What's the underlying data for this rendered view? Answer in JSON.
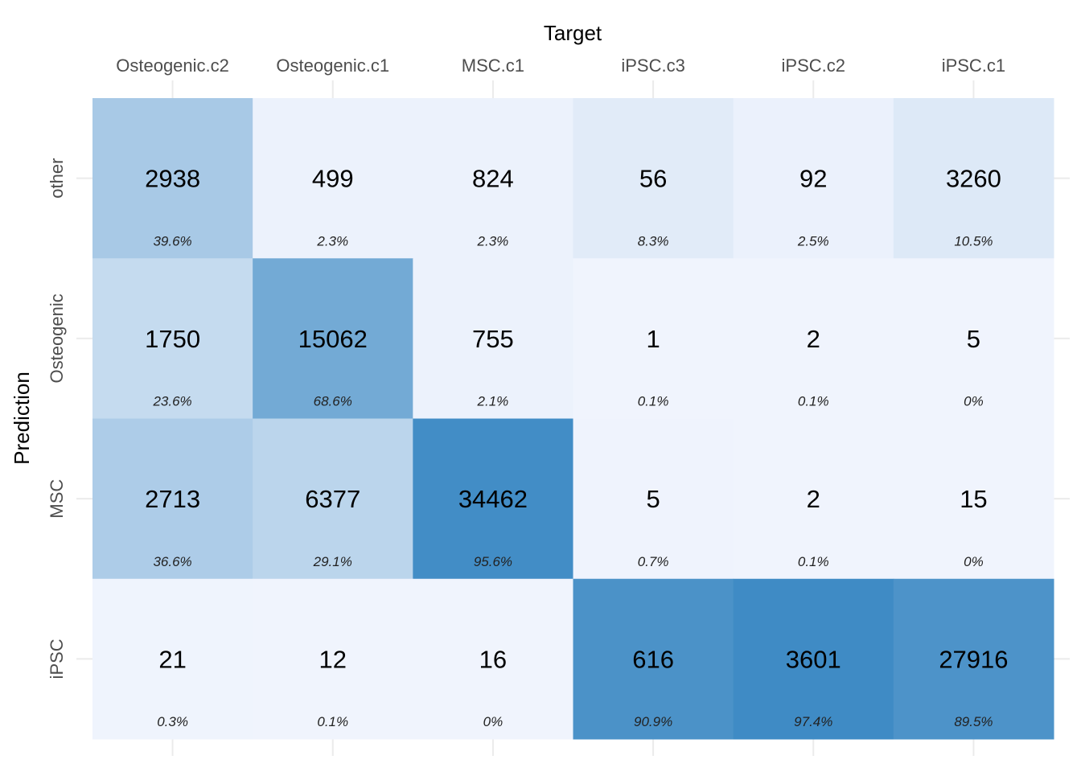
{
  "chart_data": {
    "type": "heatmap",
    "xlabel": "Target",
    "ylabel": "Prediction",
    "x_position": "top",
    "x_categories": [
      "Osteogenic.c2",
      "Osteogenic.c1",
      "MSC.c1",
      "iPSC.c3",
      "iPSC.c2",
      "iPSC.c1"
    ],
    "y_categories": [
      "other",
      "Osteogenic",
      "MSC",
      "iPSC"
    ],
    "values": [
      [
        2938,
        499,
        824,
        56,
        92,
        3260
      ],
      [
        1750,
        15062,
        755,
        1,
        2,
        5
      ],
      [
        2713,
        6377,
        34462,
        5,
        2,
        15
      ],
      [
        21,
        12,
        16,
        616,
        3601,
        27916
      ]
    ],
    "percent_labels": [
      [
        "39.6%",
        "2.3%",
        "2.3%",
        "8.3%",
        "2.5%",
        "10.5%"
      ],
      [
        "23.6%",
        "68.6%",
        "2.1%",
        "0.1%",
        "0.1%",
        "0%"
      ],
      [
        "36.6%",
        "29.1%",
        "95.6%",
        "0.7%",
        "0.1%",
        "0%"
      ],
      [
        "0.3%",
        "0.1%",
        "0%",
        "90.9%",
        "97.4%",
        "89.5%"
      ]
    ],
    "color_scale": {
      "low": "#f0f4fd",
      "high": "#3a88c3"
    },
    "grid": true
  }
}
